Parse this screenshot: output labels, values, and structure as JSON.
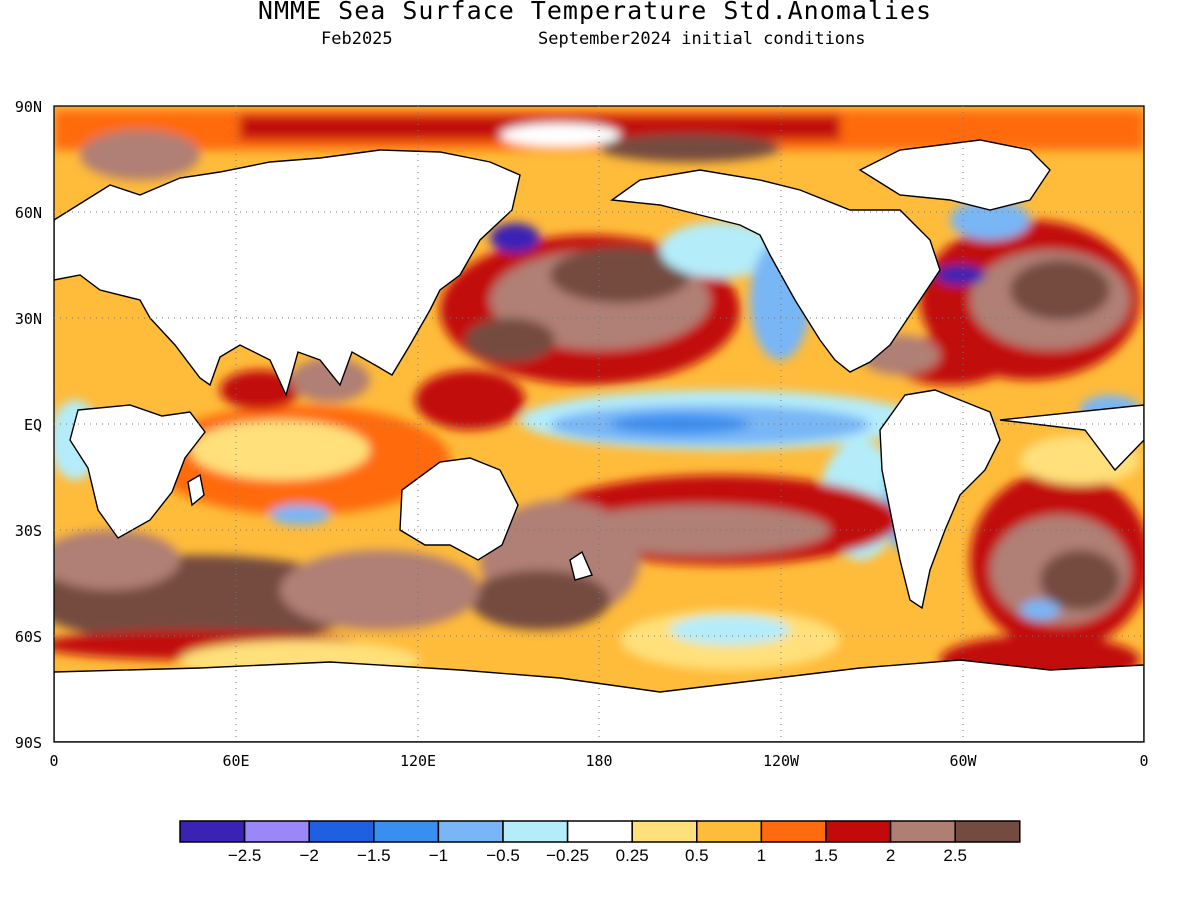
{
  "header": {
    "title": "NMME Sea Surface Temperature Std.Anomalies",
    "valid_month": "Feb2025",
    "init": "September2024 initial conditions"
  },
  "map": {
    "lat_labels": [
      "90N",
      "60N",
      "30N",
      "EQ",
      "30S",
      "60S",
      "90S"
    ],
    "lon_labels": [
      "0",
      "60E",
      "120E",
      "180",
      "120W",
      "60W",
      "0"
    ]
  },
  "colorbar": {
    "colors": [
      "#3a22b4",
      "#9b87f5",
      "#1f5fe0",
      "#3a8ef0",
      "#78b6f6",
      "#b4ecfa",
      "#ffffff",
      "#ffe07a",
      "#ffbb3a",
      "#ff6a10",
      "#c20a0a",
      "#b07f74",
      "#744b40"
    ],
    "labels": [
      "-2.5",
      "-2",
      "-1.5",
      "-1",
      "-0.5",
      "-0.25",
      "0.25",
      "0.5",
      "1",
      "1.5",
      "2",
      "2.5"
    ]
  }
}
